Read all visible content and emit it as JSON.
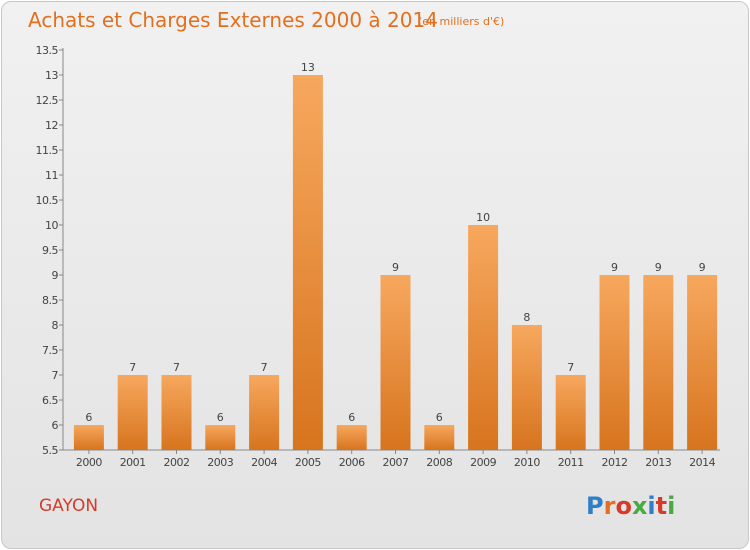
{
  "header": {
    "title": "Achats et Charges Externes 2000 à 2014",
    "unit": "(en milliers d'€)"
  },
  "footer": {
    "location": "GAYON",
    "logo": {
      "text": "Proxiti",
      "letter_colors": [
        "#2f7fc8",
        "#e2701e",
        "#d53a2b",
        "#49a942",
        "#2f7fc8",
        "#d53a2b",
        "#49a942"
      ]
    }
  },
  "colors": {
    "bar_light": "#f7a85e",
    "bar_dark": "#d7741e",
    "title": "#e2701e"
  },
  "chart_data": {
    "type": "bar",
    "title": "Achats et Charges Externes 2000 à 2014",
    "subtitle": "(en milliers d'€)",
    "categories": [
      "2000",
      "2001",
      "2002",
      "2003",
      "2004",
      "2005",
      "2006",
      "2007",
      "2008",
      "2009",
      "2010",
      "2011",
      "2012",
      "2013",
      "2014"
    ],
    "values": [
      6,
      7,
      7,
      6,
      7,
      13,
      6,
      9,
      6,
      10,
      8,
      7,
      9,
      9,
      9
    ],
    "data_labels": [
      "6",
      "7",
      "7",
      "6",
      "7",
      "13",
      "6",
      "9",
      "6",
      "10",
      "8",
      "7",
      "9",
      "9",
      "9"
    ],
    "ylim": [
      5.5,
      13.5
    ],
    "yticks": [
      5.5,
      6,
      6.5,
      7,
      7.5,
      8,
      8.5,
      9,
      9.5,
      10,
      10.5,
      11,
      11.5,
      12,
      12.5,
      13,
      13.5
    ],
    "ytick_labels": [
      "5.5",
      "6",
      "6.5",
      "7",
      "7.5",
      "8",
      "8.5",
      "9",
      "9.5",
      "10",
      "10.5",
      "11",
      "11.5",
      "12",
      "12.5",
      "13",
      "13.5"
    ],
    "grid": false,
    "legend": "none"
  }
}
